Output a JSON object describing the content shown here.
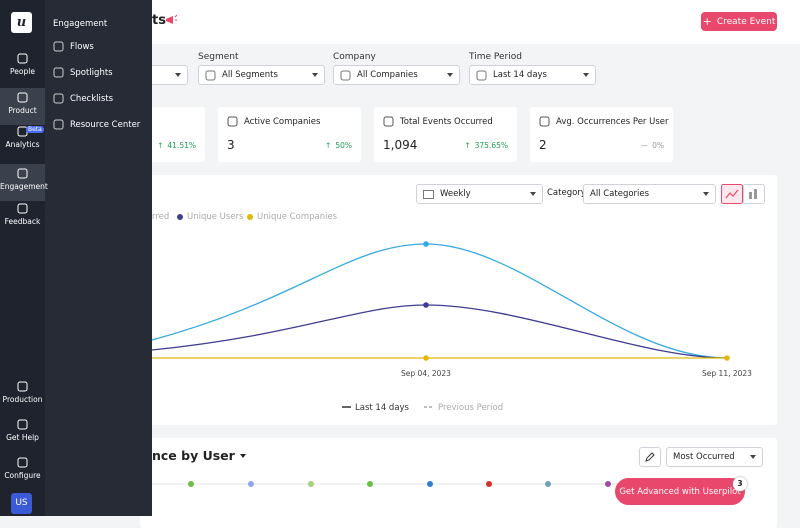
{
  "sidebar": {
    "items": [
      "People",
      "Product",
      "Analytics",
      "Engagement",
      "Feedback"
    ],
    "beta_badge": "Beta",
    "bottom_items": [
      "Production",
      "Get Help",
      "Configure"
    ],
    "avatar": "US"
  },
  "flyout": {
    "title": "Engagement",
    "items": [
      "Flows",
      "Spotlights",
      "Checklists",
      "Resource Center"
    ]
  },
  "header": {
    "title": "ts",
    "button": "Create Event"
  },
  "filters": [
    {
      "label": "Segment",
      "value": "All Segments"
    },
    {
      "label": "Company",
      "value": "All Companies"
    },
    {
      "label": "Time Period",
      "value": "Last 14 days"
    }
  ],
  "cards": [
    {
      "change": "41.51%"
    },
    {
      "title": "Active Companies",
      "value": "3",
      "change": "50%"
    },
    {
      "title": "Total Events Occurred",
      "value": "1,094",
      "change": "375.65%"
    },
    {
      "title": "Avg. Occurrences Per User",
      "value": "2",
      "change": "0%"
    }
  ],
  "chart": {
    "period": "Weekly",
    "category_label": "Category",
    "category": "All Categories",
    "legend": [
      "rred",
      "Unique Users",
      "Unique Companies"
    ],
    "x_labels": [
      "Sep 04, 2023",
      "Sep 11, 2023"
    ],
    "bottom_legend": [
      "Last 14 days",
      "Previous Period"
    ]
  },
  "section": {
    "title": "nce by User",
    "sort": "Most Occurred",
    "cta": "Get Advanced with Userpilot",
    "cta_badge": "3"
  }
}
